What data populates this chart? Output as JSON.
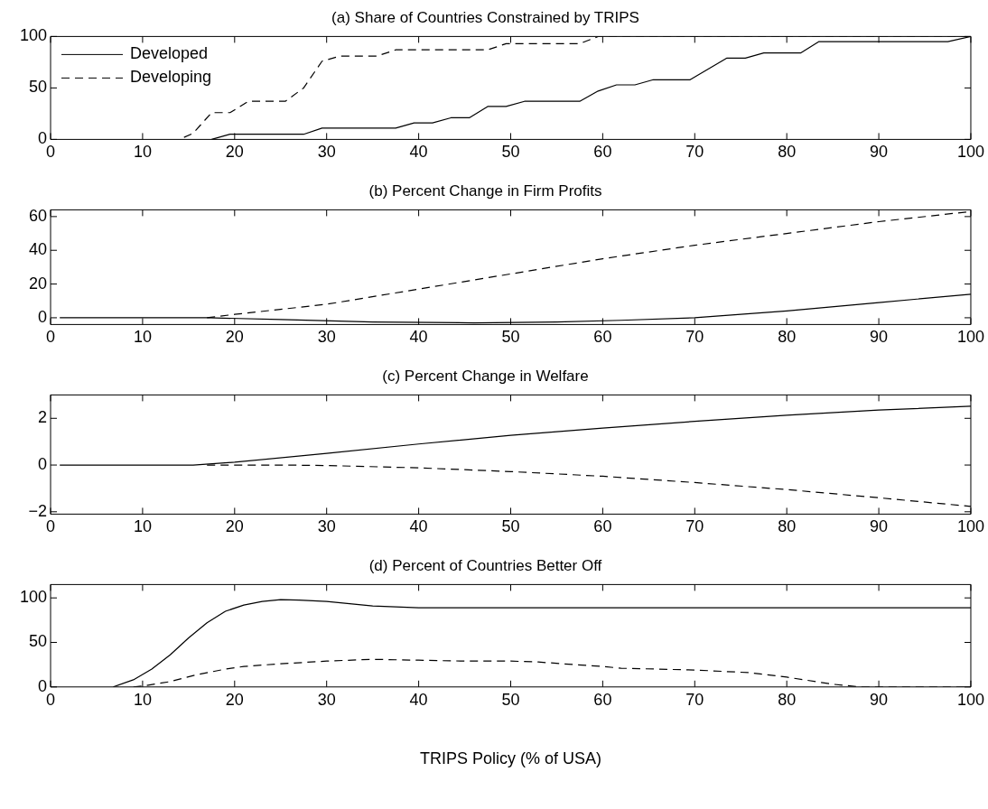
{
  "chart_data": [
    {
      "type": "line",
      "title": "(a) Share of Countries Constrained by TRIPS",
      "xlim": [
        0,
        100
      ],
      "xticks": [
        0,
        10,
        20,
        30,
        40,
        50,
        60,
        70,
        80,
        90,
        100
      ],
      "ylim": [
        0,
        100
      ],
      "yticks": [
        0,
        50,
        100
      ],
      "legend": "top left",
      "series": [
        {
          "name": "Developed",
          "color": "#000000",
          "line_style": "solid",
          "x": [
            17.5,
            19.5,
            27.5,
            29.5,
            37.5,
            39.5,
            41.5,
            43.5,
            45.5,
            47.5,
            49.5,
            51.5,
            57.5,
            59.5,
            61.5,
            63.5,
            65.5,
            69.5,
            73.5,
            75.5,
            77.5,
            81.5,
            83.5,
            97.5,
            100
          ],
          "values": [
            0,
            5,
            5,
            11,
            11,
            16,
            16,
            21,
            21,
            32,
            32,
            37,
            37,
            47,
            53,
            53,
            58,
            58,
            79,
            79,
            84,
            84,
            95,
            95,
            100
          ]
        },
        {
          "name": "Developing",
          "color": "#000000",
          "line_style": "dashed",
          "x": [
            14.5,
            15.5,
            17.5,
            19.5,
            21.5,
            25.5,
            27.5,
            29.5,
            31.5,
            35.5,
            37.5,
            47.5,
            49.5,
            57.5,
            59.5,
            100
          ],
          "values": [
            2,
            6,
            26,
            26,
            37,
            37,
            50,
            76,
            81,
            81,
            87,
            87,
            93,
            93,
            100,
            100
          ]
        }
      ]
    },
    {
      "type": "line",
      "title": "(b) Percent Change in Firm Profits",
      "xlim": [
        0,
        100
      ],
      "xticks": [
        0,
        10,
        20,
        30,
        40,
        50,
        60,
        70,
        80,
        90,
        100
      ],
      "ylim": [
        -4,
        64
      ],
      "yticks": [
        0,
        20,
        40,
        60
      ],
      "series": [
        {
          "color": "#000000",
          "line_style": "solid",
          "x": [
            1,
            10,
            17,
            25,
            35,
            46,
            55,
            62,
            70,
            80,
            90,
            100
          ],
          "values": [
            0,
            0,
            0,
            -1,
            -2.5,
            -3,
            -2.5,
            -1.5,
            0,
            4,
            9,
            14
          ]
        },
        {
          "color": "#000000",
          "line_style": "dashed",
          "x": [
            17,
            20,
            30,
            40,
            50,
            60,
            70,
            80,
            90,
            100
          ],
          "values": [
            0,
            2,
            8,
            17,
            26,
            35,
            43,
            50,
            57,
            63
          ]
        }
      ]
    },
    {
      "type": "line",
      "title": "(c) Percent Change in Welfare",
      "xlim": [
        0,
        100
      ],
      "xticks": [
        0,
        10,
        20,
        30,
        40,
        50,
        60,
        70,
        80,
        90,
        100
      ],
      "ylim": [
        -2.1,
        3
      ],
      "yticks": [
        -2,
        0,
        2
      ],
      "series": [
        {
          "color": "#000000",
          "line_style": "solid",
          "x": [
            1,
            10,
            15.5,
            20,
            30,
            40,
            50,
            60,
            70,
            80,
            90,
            100
          ],
          "values": [
            0,
            0,
            0,
            0.12,
            0.5,
            0.9,
            1.27,
            1.58,
            1.87,
            2.13,
            2.35,
            2.52
          ]
        },
        {
          "color": "#000000",
          "line_style": "dashed",
          "x": [
            17,
            25,
            30,
            40,
            50,
            60,
            70,
            80,
            90,
            100
          ],
          "values": [
            0,
            0,
            -0.02,
            -0.12,
            -0.28,
            -0.48,
            -0.75,
            -1.05,
            -1.4,
            -1.77
          ]
        }
      ]
    },
    {
      "type": "line",
      "title": "(d) Percent of Countries Better Off",
      "xlabel": "TRIPS Policy (% of USA)",
      "xlim": [
        0,
        100
      ],
      "xticks": [
        0,
        10,
        20,
        30,
        40,
        50,
        60,
        70,
        80,
        90,
        100
      ],
      "ylim": [
        0,
        115
      ],
      "yticks": [
        0,
        50,
        100
      ],
      "series": [
        {
          "color": "#000000",
          "line_style": "solid",
          "x": [
            6.8,
            9,
            11,
            13,
            15,
            17,
            19,
            21,
            23,
            25,
            27,
            30,
            35,
            40,
            45,
            100
          ],
          "values": [
            0,
            8,
            20,
            36,
            55,
            72,
            85,
            92,
            96,
            98,
            97.5,
            96,
            91,
            89,
            89,
            89
          ]
        },
        {
          "color": "#000000",
          "line_style": "dashed",
          "x": [
            9,
            10,
            13,
            16,
            19,
            21,
            25,
            30,
            35,
            40,
            45,
            50,
            53,
            57,
            60,
            62,
            70,
            76,
            80,
            85,
            88,
            100
          ],
          "values": [
            0,
            1,
            6,
            14,
            20,
            23,
            26,
            29,
            31,
            30,
            29,
            29,
            28,
            25,
            23,
            21,
            19,
            16,
            11,
            3,
            0,
            0
          ]
        }
      ]
    }
  ]
}
